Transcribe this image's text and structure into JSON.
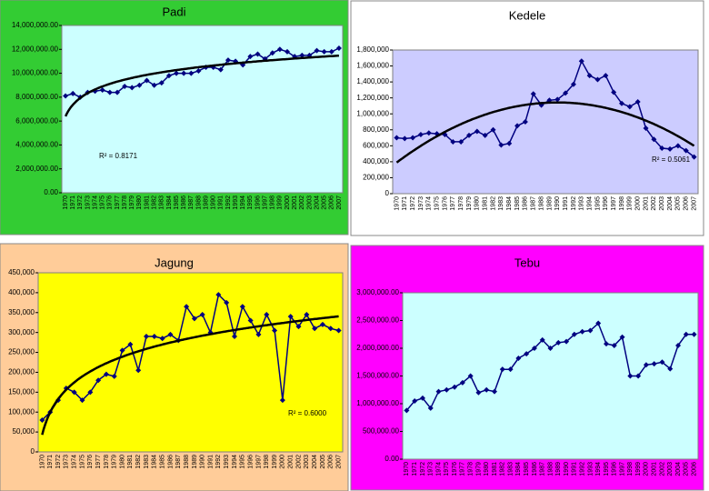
{
  "chart_data": [
    {
      "type": "line",
      "title": "Padi",
      "annotation": "R² = 0.8171",
      "trendline": "log",
      "color": "#000080",
      "background": "#33cc33",
      "plot_background": "#ccffff",
      "categories": [
        "1970",
        "1971",
        "1972",
        "1973",
        "1974",
        "1975",
        "1976",
        "1977",
        "1978",
        "1979",
        "1980",
        "1981",
        "1982",
        "1983",
        "1984",
        "1985",
        "1986",
        "1987",
        "1988",
        "1989",
        "1990",
        "1991",
        "1992",
        "1993",
        "1994",
        "1995",
        "1996",
        "1997",
        "1998",
        "1999",
        "2000",
        "2001",
        "2002",
        "2003",
        "2004",
        "2005",
        "2006",
        "2007"
      ],
      "values": [
        8100000,
        8300000,
        8000000,
        8400000,
        8500000,
        8600000,
        8400000,
        8400000,
        8900000,
        8800000,
        9000000,
        9400000,
        9000000,
        9200000,
        9800000,
        10000000,
        10000000,
        10000000,
        10200000,
        10500000,
        10500000,
        10300000,
        11100000,
        11000000,
        10700000,
        11400000,
        11600000,
        11200000,
        11700000,
        12000000,
        11800000,
        11400000,
        11500000,
        11500000,
        11900000,
        11800000,
        11800000,
        12100000
      ],
      "ylim": [
        0,
        14000000
      ],
      "yticks": [
        {
          "value": 0,
          "label": "0.00"
        },
        {
          "value": 2000000,
          "label": "2,000,000.00"
        },
        {
          "value": 4000000,
          "label": "4,000,000.00"
        },
        {
          "value": 6000000,
          "label": "6,000,000.00"
        },
        {
          "value": 8000000,
          "label": "8,000,000.00"
        },
        {
          "value": 10000000,
          "label": "10,000,000.00"
        },
        {
          "value": 12000000,
          "label": "12,000,000.00"
        },
        {
          "value": 14000000,
          "label": "14,000,000.00"
        }
      ]
    },
    {
      "type": "line",
      "title": "Kedele",
      "annotation": "R² = 0.5061",
      "trendline": "poly2",
      "color": "#000080",
      "background": "#ffffff",
      "plot_background": "#ccccff",
      "categories": [
        "1970",
        "1971",
        "1972",
        "1973",
        "1974",
        "1975",
        "1976",
        "1977",
        "1978",
        "1979",
        "1980",
        "1981",
        "1982",
        "1983",
        "1984",
        "1985",
        "1986",
        "1987",
        "1988",
        "1989",
        "1990",
        "1991",
        "1992",
        "1993",
        "1994",
        "1995",
        "1996",
        "1997",
        "1998",
        "1999",
        "2000",
        "2001",
        "2002",
        "2003",
        "2004",
        "2005",
        "2006",
        "2007"
      ],
      "values": [
        700000,
        690000,
        700000,
        740000,
        760000,
        750000,
        740000,
        650000,
        650000,
        730000,
        780000,
        730000,
        800000,
        610000,
        630000,
        850000,
        900000,
        1250000,
        1110000,
        1170000,
        1180000,
        1260000,
        1370000,
        1660000,
        1480000,
        1430000,
        1480000,
        1270000,
        1130000,
        1090000,
        1150000,
        820000,
        680000,
        570000,
        560000,
        600000,
        540000,
        460000
      ],
      "ylim": [
        0,
        1800000
      ],
      "yticks": [
        0,
        {
          "value": 200000,
          "label": "200,000"
        },
        {
          "value": 400000,
          "label": "400,000"
        },
        {
          "value": 600000,
          "label": "600,000"
        },
        {
          "value": 800000,
          "label": "800,000"
        },
        {
          "value": 1000000,
          "label": "1,000,000"
        },
        {
          "value": 1200000,
          "label": "1,200,000"
        },
        {
          "value": 1400000,
          "label": "1,400,000"
        },
        {
          "value": 1600000,
          "label": "1,600,000"
        },
        {
          "value": 1800000,
          "label": "1,800,000"
        }
      ]
    },
    {
      "type": "line",
      "title": "Jagung",
      "annotation": "R² = 0.6000",
      "trendline": "log",
      "color": "#000080",
      "background": "#ffcc99",
      "plot_background": "#ffff00",
      "categories": [
        "1970",
        "1971",
        "1972",
        "1973",
        "1974",
        "1975",
        "1976",
        "1977",
        "1978",
        "1979",
        "1980",
        "1981",
        "1982",
        "1983",
        "1984",
        "1985",
        "1986",
        "1987",
        "1988",
        "1989",
        "1990",
        "1991",
        "1992",
        "1993",
        "1994",
        "1995",
        "1996",
        "1997",
        "1998",
        "1999",
        "2000",
        "2001",
        "2002",
        "2003",
        "2004",
        "2005",
        "2006",
        "2007"
      ],
      "values": [
        80000,
        100000,
        130000,
        160000,
        150000,
        130000,
        150000,
        180000,
        195000,
        190000,
        255000,
        270000,
        205000,
        290000,
        290000,
        285000,
        295000,
        280000,
        365000,
        335000,
        345000,
        300000,
        395000,
        375000,
        290000,
        365000,
        330000,
        295000,
        345000,
        305000,
        130000,
        340000,
        315000,
        345000,
        310000,
        320000,
        310000,
        305000
      ],
      "ylim": [
        0,
        450000
      ],
      "yticks": [
        0,
        {
          "value": 50000,
          "label": "50,000"
        },
        {
          "value": 100000,
          "label": "100,000"
        },
        {
          "value": 150000,
          "label": "150,000"
        },
        {
          "value": 200000,
          "label": "200,000"
        },
        {
          "value": 250000,
          "label": "250,000"
        },
        {
          "value": 300000,
          "label": "300,000"
        },
        {
          "value": 350000,
          "label": "350,000"
        },
        {
          "value": 400000,
          "label": "400,000"
        },
        {
          "value": 450000,
          "label": "450,000"
        }
      ]
    },
    {
      "type": "line",
      "title": "Tebu",
      "color": "#000080",
      "background": "#ff00ff",
      "plot_background": "#ccffff",
      "categories": [
        "1970",
        "1971",
        "1972",
        "1973",
        "1974",
        "1975",
        "1976",
        "1977",
        "1978",
        "1979",
        "1980",
        "1981",
        "1982",
        "1983",
        "1984",
        "1985",
        "1986",
        "1987",
        "1988",
        "1989",
        "1990",
        "1991",
        "1992",
        "1993",
        "1994",
        "1995",
        "1996",
        "1997",
        "1998",
        "1999",
        "2000",
        "2001",
        "2002",
        "2003",
        "2004",
        "2005",
        "2006"
      ],
      "values": [
        880000,
        1050000,
        1100000,
        920000,
        1220000,
        1250000,
        1300000,
        1380000,
        1500000,
        1200000,
        1250000,
        1220000,
        1620000,
        1620000,
        1820000,
        1900000,
        2000000,
        2150000,
        2000000,
        2100000,
        2120000,
        2250000,
        2300000,
        2320000,
        2450000,
        2080000,
        2050000,
        2200000,
        1500000,
        1500000,
        1700000,
        1720000,
        1750000,
        1630000,
        2050000,
        2250000,
        2250000
      ],
      "ylim": [
        0,
        3000000
      ],
      "yticks": [
        {
          "value": 0,
          "label": "0.00"
        },
        {
          "value": 500000,
          "label": "500,000.00"
        },
        {
          "value": 1000000,
          "label": "1,000,000.00"
        },
        {
          "value": 1500000,
          "label": "1,500,000.00"
        },
        {
          "value": 2000000,
          "label": "2,000,000.00"
        },
        {
          "value": 2500000,
          "label": "2,500,000.00"
        },
        {
          "value": 3000000,
          "label": "3,000,000.00"
        }
      ]
    }
  ]
}
